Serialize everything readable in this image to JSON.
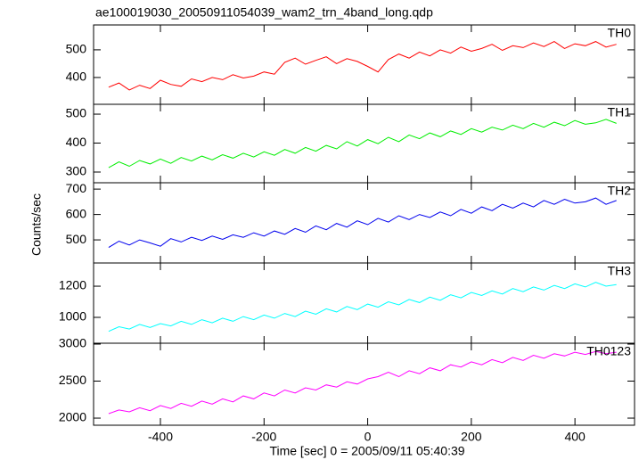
{
  "chart_data": {
    "type": "line",
    "title": "ae100019030_20050911054039_wam2_trn_4band_long.qdp",
    "xlabel": "Time [sec] 0 = 2005/09/11 05:40:39",
    "ylabel": "Counts/sec",
    "xlim": [
      -529,
      515
    ],
    "xticks": [
      -400,
      -200,
      0,
      200,
      400
    ],
    "x": [
      -500,
      -480,
      -460,
      -440,
      -420,
      -400,
      -380,
      -360,
      -340,
      -320,
      -300,
      -280,
      -260,
      -240,
      -220,
      -200,
      -180,
      -160,
      -140,
      -120,
      -100,
      -80,
      -60,
      -40,
      -20,
      0,
      20,
      40,
      60,
      80,
      100,
      120,
      140,
      160,
      180,
      200,
      220,
      240,
      260,
      280,
      300,
      320,
      340,
      360,
      380,
      400,
      420,
      440,
      460,
      480
    ],
    "series": [
      {
        "name": "TH0",
        "color": "#ff0000",
        "ylim": [
          303,
          590
        ],
        "yticks": [
          400,
          500
        ],
        "values": [
          365,
          380,
          355,
          372,
          360,
          390,
          375,
          368,
          395,
          385,
          400,
          392,
          410,
          398,
          405,
          420,
          412,
          455,
          470,
          448,
          462,
          475,
          450,
          468,
          458,
          440,
          420,
          465,
          485,
          470,
          492,
          478,
          500,
          488,
          510,
          495,
          505,
          520,
          498,
          515,
          508,
          525,
          512,
          530,
          505,
          522,
          515,
          530,
          510,
          520
        ]
      },
      {
        "name": "TH1",
        "color": "#00ee00",
        "ylim": [
          263,
          534
        ],
        "yticks": [
          300,
          400,
          500
        ],
        "values": [
          315,
          335,
          320,
          340,
          328,
          345,
          330,
          350,
          338,
          355,
          342,
          360,
          348,
          365,
          352,
          370,
          358,
          378,
          365,
          385,
          372,
          392,
          380,
          405,
          390,
          412,
          398,
          420,
          405,
          428,
          415,
          435,
          422,
          442,
          430,
          450,
          438,
          455,
          445,
          462,
          450,
          468,
          455,
          472,
          460,
          478,
          465,
          470,
          482,
          468
        ]
      },
      {
        "name": "TH2",
        "color": "#0000ee",
        "ylim": [
          409,
          725
        ],
        "yticks": [
          500,
          600,
          700
        ],
        "values": [
          470,
          495,
          480,
          500,
          488,
          475,
          505,
          492,
          510,
          498,
          515,
          502,
          520,
          510,
          528,
          515,
          535,
          522,
          545,
          530,
          555,
          540,
          565,
          550,
          575,
          560,
          585,
          570,
          595,
          580,
          600,
          588,
          610,
          595,
          620,
          605,
          630,
          615,
          640,
          625,
          645,
          630,
          655,
          640,
          660,
          645,
          650,
          665,
          640,
          655
        ]
      },
      {
        "name": "TH3",
        "color": "#00ffff",
        "ylim": [
          834,
          1349
        ],
        "yticks": [
          1000,
          1200
        ],
        "values": [
          910,
          940,
          925,
          955,
          935,
          960,
          945,
          975,
          955,
          985,
          965,
          995,
          975,
          1005,
          985,
          1015,
          995,
          1025,
          1005,
          1040,
          1020,
          1055,
          1035,
          1070,
          1050,
          1085,
          1065,
          1100,
          1080,
          1115,
          1095,
          1130,
          1110,
          1145,
          1125,
          1160,
          1140,
          1170,
          1150,
          1185,
          1165,
          1195,
          1175,
          1205,
          1185,
          1215,
          1195,
          1225,
          1200,
          1210
        ]
      },
      {
        "name": "TH0123",
        "color": "#ff00ff",
        "ylim": [
          1904,
          3012
        ],
        "yticks": [
          2000,
          2500,
          3000
        ],
        "values": [
          2060,
          2110,
          2085,
          2140,
          2100,
          2170,
          2130,
          2200,
          2160,
          2230,
          2190,
          2260,
          2220,
          2300,
          2260,
          2340,
          2300,
          2380,
          2340,
          2410,
          2380,
          2450,
          2420,
          2490,
          2460,
          2530,
          2560,
          2620,
          2560,
          2640,
          2600,
          2680,
          2640,
          2720,
          2690,
          2760,
          2720,
          2790,
          2750,
          2820,
          2780,
          2850,
          2810,
          2870,
          2840,
          2890,
          2860,
          2900,
          2870,
          2890
        ]
      }
    ]
  }
}
